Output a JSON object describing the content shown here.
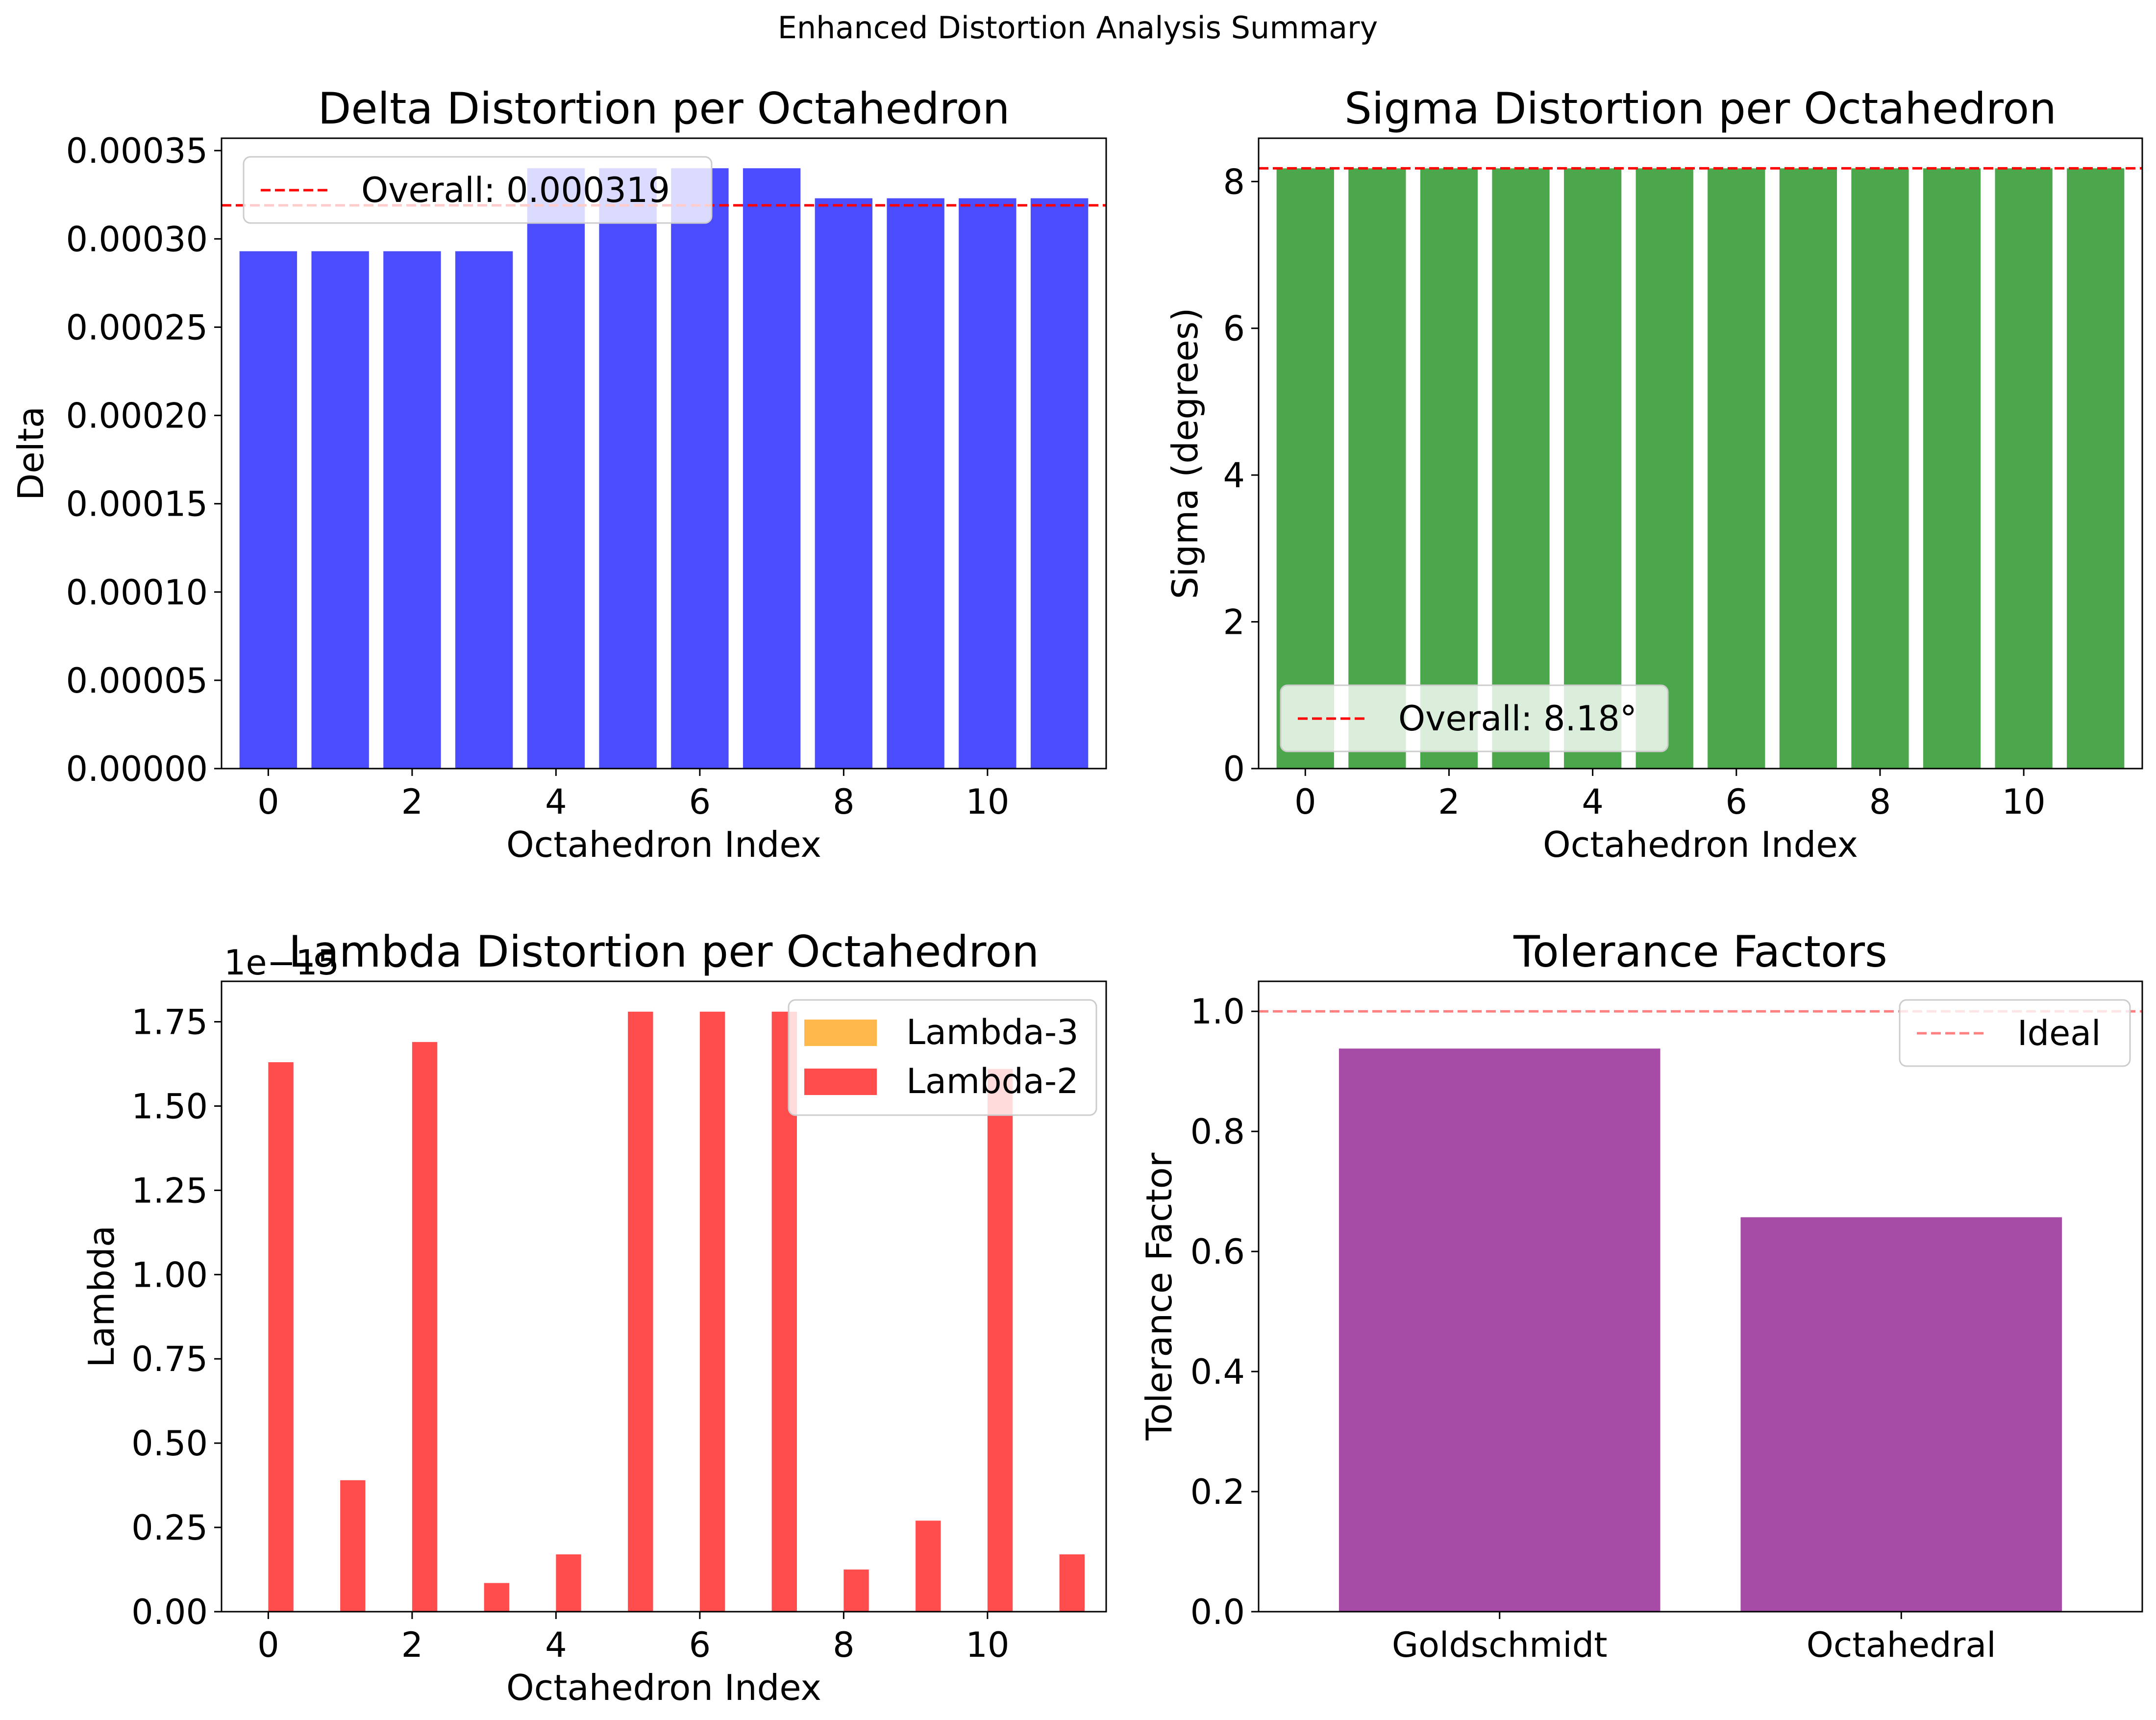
{
  "suptitle": "Enhanced Distortion Analysis Summary",
  "chart_data": [
    {
      "id": "delta",
      "type": "bar",
      "title": "Delta Distortion per Octahedron",
      "xlabel": "Octahedron Index",
      "ylabel": "Delta",
      "x": [
        0,
        1,
        2,
        3,
        4,
        5,
        6,
        7,
        8,
        9,
        10,
        11
      ],
      "values": [
        0.000293,
        0.000293,
        0.000293,
        0.000293,
        0.00034,
        0.00034,
        0.00034,
        0.00034,
        0.000323,
        0.000323,
        0.000323,
        0.000323
      ],
      "color": "#4c4cff",
      "xlim": [
        -0.65,
        11.65
      ],
      "ylim": [
        0,
        0.000357
      ],
      "xticks": [
        0,
        2,
        4,
        6,
        8,
        10
      ],
      "xtick_labels": [
        "0",
        "2",
        "4",
        "6",
        "8",
        "10"
      ],
      "yticks": [
        0,
        5e-05,
        0.0001,
        0.00015,
        0.0002,
        0.00025,
        0.0003,
        0.00035
      ],
      "ytick_labels": [
        "0.00000",
        "0.00005",
        "0.00010",
        "0.00015",
        "0.00020",
        "0.00025",
        "0.00030",
        "0.00035"
      ],
      "hline": {
        "y": 0.000319,
        "color": "#ff0000",
        "label": "Overall: 0.000319"
      },
      "legend_position": "upper-left"
    },
    {
      "id": "sigma",
      "type": "bar",
      "title": "Sigma Distortion per Octahedron",
      "xlabel": "Octahedron Index",
      "ylabel": "Sigma (degrees)",
      "x": [
        0,
        1,
        2,
        3,
        4,
        5,
        6,
        7,
        8,
        9,
        10,
        11
      ],
      "values": [
        8.18,
        8.18,
        8.18,
        8.18,
        8.18,
        8.18,
        8.18,
        8.18,
        8.18,
        8.18,
        8.18,
        8.18
      ],
      "color": "#4ca64c",
      "xlim": [
        -0.65,
        11.65
      ],
      "ylim": [
        0,
        8.59
      ],
      "xticks": [
        0,
        2,
        4,
        6,
        8,
        10
      ],
      "xtick_labels": [
        "0",
        "2",
        "4",
        "6",
        "8",
        "10"
      ],
      "yticks": [
        0,
        2,
        4,
        6,
        8
      ],
      "ytick_labels": [
        "0",
        "2",
        "4",
        "6",
        "8"
      ],
      "hline": {
        "y": 8.18,
        "color": "#ff0000",
        "label": "Overall: 8.18°"
      },
      "legend_position": "lower-left"
    },
    {
      "id": "lambda",
      "type": "bar",
      "title": "Lambda Distortion per Octahedron",
      "xlabel": "Octahedron Index",
      "ylabel": "Lambda",
      "offset_text": "1e−15",
      "x": [
        0,
        1,
        2,
        3,
        4,
        5,
        6,
        7,
        8,
        9,
        10,
        11
      ],
      "series": [
        {
          "name": "Lambda-3",
          "color": "#ffb84c",
          "values": [
            0,
            0,
            0,
            0,
            0,
            0,
            0,
            0,
            0,
            0,
            0,
            0
          ]
        },
        {
          "name": "Lambda-2",
          "color": "#ff4c4c",
          "values": [
            1.63,
            0.39,
            1.69,
            0.085,
            0.17,
            1.78,
            1.78,
            1.78,
            0.125,
            0.27,
            1.61,
            0.17
          ]
        }
      ],
      "xlim": [
        -0.65,
        11.65
      ],
      "ylim": [
        0,
        1.87
      ],
      "xticks": [
        0,
        2,
        4,
        6,
        8,
        10
      ],
      "xtick_labels": [
        "0",
        "2",
        "4",
        "6",
        "8",
        "10"
      ],
      "yticks": [
        0,
        0.25,
        0.5,
        0.75,
        1.0,
        1.25,
        1.5,
        1.75
      ],
      "ytick_labels": [
        "0.00",
        "0.25",
        "0.50",
        "0.75",
        "1.00",
        "1.25",
        "1.50",
        "1.75"
      ],
      "legend_position": "upper-right"
    },
    {
      "id": "tolerance",
      "type": "bar",
      "title": "Tolerance Factors",
      "xlabel": "",
      "ylabel": "Tolerance Factor",
      "categories": [
        "Goldschmidt",
        "Octahedral"
      ],
      "values": [
        0.938,
        0.657
      ],
      "color": "#a64ca6",
      "xlim": [
        -0.6,
        1.6
      ],
      "ylim": [
        0,
        1.05
      ],
      "yticks": [
        0,
        0.2,
        0.4,
        0.6,
        0.8,
        1.0
      ],
      "ytick_labels": [
        "0.0",
        "0.2",
        "0.4",
        "0.6",
        "0.8",
        "1.0"
      ],
      "hline": {
        "y": 1.0,
        "color": "#ff8080",
        "label": "Ideal"
      },
      "legend_position": "upper-right"
    }
  ]
}
